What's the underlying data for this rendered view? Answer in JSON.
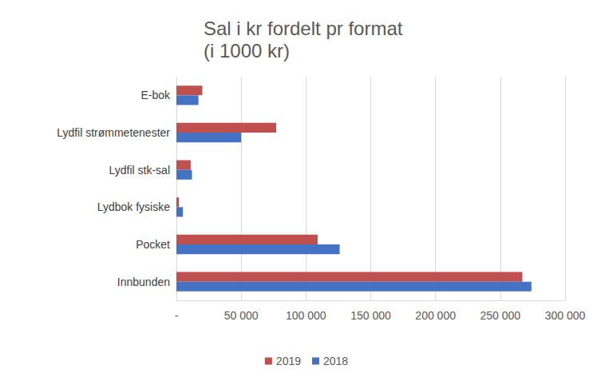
{
  "chart_data": {
    "type": "bar",
    "title": "Sal i kr fordelt pr format",
    "subtitle": "(i 1000 kr)",
    "orientation": "horizontal",
    "categories": [
      "E-bok",
      "Lydfil strømmetenester",
      "Lydfil stk-sal",
      "Lydbok fysiske",
      "Pocket",
      "Innbunden"
    ],
    "series": [
      {
        "name": "2019",
        "color": "#c0504d",
        "values": [
          20000,
          77000,
          11000,
          2000,
          109000,
          267000
        ]
      },
      {
        "name": "2018",
        "color": "#4472c4",
        "values": [
          17000,
          50000,
          12000,
          5000,
          126000,
          274000
        ]
      }
    ],
    "xlim": [
      0,
      300000
    ],
    "xticks": [
      {
        "value": 0,
        "label": "-"
      },
      {
        "value": 50000,
        "label": "50 000"
      },
      {
        "value": 100000,
        "label": "100 000"
      },
      {
        "value": 150000,
        "label": "150 000"
      },
      {
        "value": 200000,
        "label": "200 000"
      },
      {
        "value": 250000,
        "label": "250 000"
      },
      {
        "value": 300000,
        "label": "300 000"
      }
    ],
    "grid": true,
    "legend": "bottom"
  }
}
